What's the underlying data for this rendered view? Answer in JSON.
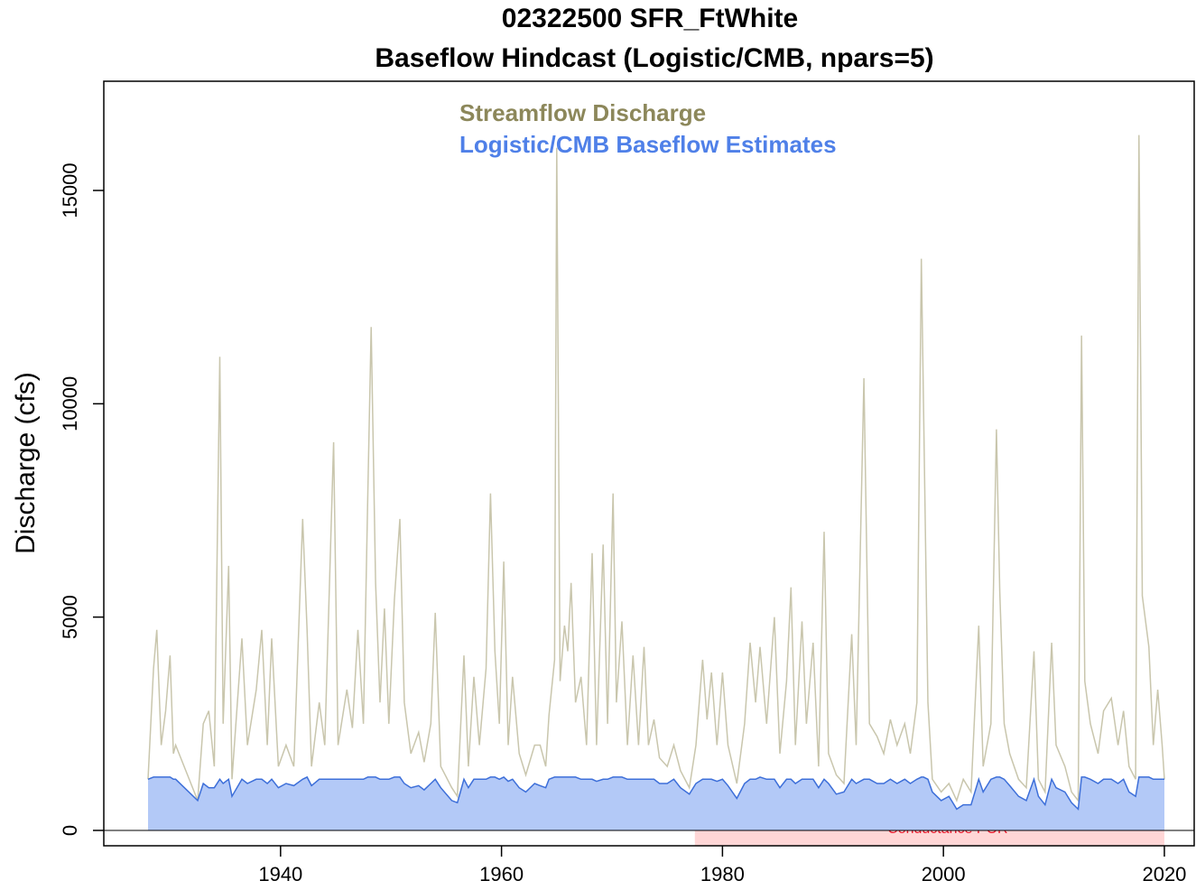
{
  "chart_data": {
    "type": "line",
    "title": "02322500 SFR_FtWhite",
    "subtitle": "Baseflow Hindcast (Logistic/CMB, npars=5)",
    "y_label": "Discharge (cfs)",
    "xlim": [
      1924,
      2022.7
    ],
    "ylim": [
      -360,
      17560
    ],
    "xticks": [
      1940,
      1960,
      1980,
      2000,
      2020
    ],
    "yticks": [
      0,
      5000,
      10000,
      15000
    ],
    "shaded_period": {
      "label": "Conductance POR",
      "xlim": [
        1977.5,
        2020
      ],
      "color": "#ffd6d6",
      "label_color": "#e8192c"
    },
    "x": [
      1928.0,
      1928.5,
      1928.8,
      1929.2,
      1929.6,
      1930.0,
      1930.3,
      1930.5,
      1932.5,
      1933.0,
      1933.5,
      1934.0,
      1934.5,
      1934.8,
      1935.3,
      1935.6,
      1936.5,
      1937.0,
      1937.8,
      1938.3,
      1938.8,
      1939.2,
      1939.8,
      1940.5,
      1941.2,
      1942.0,
      1942.4,
      1942.8,
      1943.5,
      1944.0,
      1944.8,
      1945.2,
      1946.0,
      1946.5,
      1947.0,
      1947.5,
      1947.9,
      1948.2,
      1948.6,
      1949.0,
      1949.4,
      1949.8,
      1950.3,
      1950.8,
      1951.2,
      1951.8,
      1952.5,
      1953.0,
      1953.6,
      1954.0,
      1954.5,
      1955.5,
      1956.0,
      1956.6,
      1957.0,
      1957.5,
      1958.0,
      1958.6,
      1959.0,
      1959.4,
      1959.8,
      1960.2,
      1960.6,
      1961.0,
      1961.6,
      1962.2,
      1963.0,
      1963.5,
      1964.0,
      1964.3,
      1964.8,
      1965.0,
      1965.3,
      1965.7,
      1966.0,
      1966.3,
      1966.7,
      1967.2,
      1967.7,
      1968.2,
      1968.6,
      1969.2,
      1969.6,
      1970.1,
      1970.4,
      1970.9,
      1971.4,
      1971.9,
      1972.4,
      1972.9,
      1973.3,
      1973.8,
      1974.3,
      1975.0,
      1975.6,
      1976.2,
      1977.0,
      1977.6,
      1978.2,
      1978.6,
      1979.0,
      1979.5,
      1980.0,
      1980.5,
      1981.3,
      1982.0,
      1982.5,
      1983.0,
      1983.4,
      1984.0,
      1984.7,
      1985.2,
      1985.8,
      1986.2,
      1986.6,
      1987.2,
      1987.6,
      1988.2,
      1988.7,
      1989.2,
      1989.6,
      1990.3,
      1991.0,
      1991.7,
      1992.1,
      1992.8,
      1993.3,
      1994.0,
      1994.6,
      1995.2,
      1995.8,
      1996.5,
      1997.0,
      1997.6,
      1998.0,
      1998.2,
      1998.6,
      1999.0,
      1999.8,
      2000.5,
      2001.2,
      2001.8,
      2002.5,
      2003.2,
      2003.6,
      2004.3,
      2004.8,
      2005.1,
      2005.5,
      2006.0,
      2006.8,
      2007.5,
      2008.2,
      2008.6,
      2009.2,
      2009.8,
      2010.2,
      2011.0,
      2011.6,
      2012.2,
      2012.5,
      2012.8,
      2013.3,
      2014.0,
      2014.5,
      2015.2,
      2015.8,
      2016.3,
      2016.8,
      2017.4,
      2017.7,
      2018.0,
      2018.6,
      2019.0,
      2019.4,
      2019.8,
      2020.0
    ],
    "series": [
      {
        "name": "Streamflow Discharge",
        "color": "#c9c6ad",
        "legend_color": "#8c875a",
        "values": [
          1200,
          3800,
          4700,
          2000,
          2800,
          4100,
          1800,
          2000,
          700,
          2500,
          2800,
          1500,
          11100,
          2500,
          6200,
          1200,
          4500,
          2000,
          3300,
          4700,
          2000,
          4500,
          1500,
          2000,
          1500,
          7300,
          4700,
          1500,
          3000,
          2000,
          9100,
          2000,
          3300,
          2400,
          4700,
          2500,
          7900,
          11800,
          5800,
          3000,
          5200,
          2500,
          5400,
          7300,
          3000,
          1800,
          2300,
          1600,
          2500,
          5100,
          1500,
          1000,
          800,
          4100,
          1500,
          3600,
          2000,
          3800,
          7900,
          4200,
          2500,
          6300,
          2000,
          3600,
          1800,
          1300,
          2000,
          2000,
          1500,
          2700,
          4000,
          16000,
          3500,
          4800,
          4200,
          5800,
          3000,
          3600,
          2000,
          6500,
          2000,
          6700,
          2500,
          7900,
          3000,
          4900,
          2000,
          4100,
          2000,
          4300,
          2000,
          2600,
          1700,
          1500,
          2000,
          1400,
          1000,
          2000,
          4000,
          2600,
          3700,
          2000,
          3700,
          2000,
          1100,
          2500,
          4400,
          3000,
          4300,
          2500,
          5000,
          1800,
          3500,
          5700,
          2000,
          4900,
          2500,
          4400,
          1500,
          7000,
          1800,
          1300,
          1100,
          4600,
          2000,
          10600,
          2500,
          2200,
          1800,
          2600,
          2000,
          2500,
          1800,
          3000,
          13400,
          10000,
          3000,
          1200,
          900,
          1100,
          700,
          1200,
          900,
          4800,
          1500,
          2500,
          9400,
          5600,
          2500,
          1800,
          1200,
          1000,
          4200,
          1200,
          900,
          4400,
          2000,
          1500,
          900,
          700,
          11600,
          3500,
          2500,
          1800,
          2800,
          3100,
          2000,
          2800,
          1500,
          1200,
          16300,
          5500,
          4300,
          2000,
          3300,
          2000,
          1200
        ]
      },
      {
        "name": "Logistic/CMB Baseflow Estimates",
        "color": "#3d6fd9",
        "fill": "#b3c9f7",
        "legend_color": "#4f80e8",
        "values": [
          1200,
          1250,
          1250,
          1250,
          1250,
          1250,
          1200,
          1200,
          700,
          1100,
          1000,
          1000,
          1200,
          1100,
          1200,
          800,
          1200,
          1100,
          1200,
          1200,
          1100,
          1200,
          1000,
          1100,
          1050,
          1200,
          1250,
          1050,
          1200,
          1200,
          1200,
          1200,
          1200,
          1200,
          1200,
          1200,
          1250,
          1250,
          1250,
          1200,
          1200,
          1200,
          1250,
          1250,
          1100,
          1000,
          1050,
          950,
          1100,
          1200,
          1000,
          700,
          650,
          1200,
          1000,
          1200,
          1200,
          1200,
          1250,
          1250,
          1200,
          1250,
          1150,
          1200,
          1000,
          900,
          1100,
          1050,
          1000,
          1200,
          1250,
          1250,
          1250,
          1250,
          1250,
          1250,
          1250,
          1200,
          1200,
          1200,
          1150,
          1200,
          1200,
          1250,
          1250,
          1250,
          1200,
          1200,
          1200,
          1200,
          1200,
          1200,
          1100,
          1100,
          1200,
          1000,
          850,
          1100,
          1200,
          1200,
          1200,
          1150,
          1200,
          1050,
          750,
          1100,
          1200,
          1200,
          1250,
          1200,
          1200,
          1000,
          1200,
          1200,
          1100,
          1200,
          1200,
          1200,
          1000,
          1200,
          1100,
          850,
          900,
          1200,
          1100,
          1200,
          1200,
          1100,
          1100,
          1200,
          1100,
          1200,
          1100,
          1200,
          1250,
          1250,
          1200,
          900,
          700,
          800,
          500,
          600,
          600,
          1200,
          900,
          1200,
          1250,
          1250,
          1200,
          1050,
          800,
          700,
          1200,
          800,
          600,
          1200,
          1000,
          900,
          650,
          500,
          1250,
          1250,
          1200,
          1100,
          1200,
          1200,
          1100,
          1200,
          900,
          800,
          1250,
          1250,
          1250,
          1200,
          1200,
          1200,
          1200
        ]
      }
    ]
  }
}
